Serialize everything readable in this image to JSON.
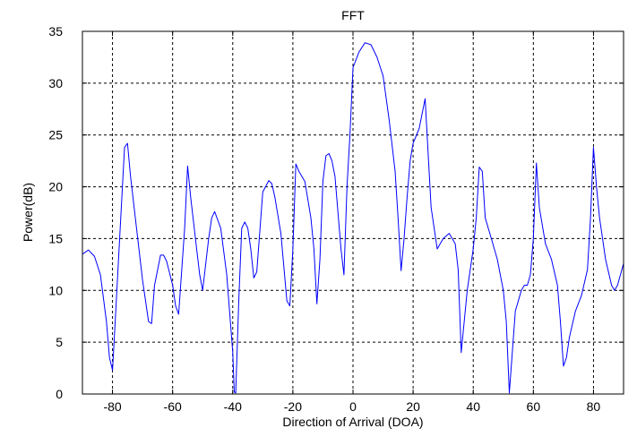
{
  "chart_data": {
    "type": "line",
    "title": "FFT",
    "xlabel": "Direction of Arrival (DOA)",
    "ylabel": "Power(dB)",
    "xlim": [
      -90,
      90
    ],
    "ylim": [
      0,
      35
    ],
    "xticks": [
      -80,
      -60,
      -40,
      -20,
      0,
      20,
      40,
      60,
      80
    ],
    "yticks": [
      0,
      5,
      10,
      15,
      20,
      25,
      30,
      35
    ],
    "grid": true,
    "line_color": "#0000ff",
    "series": [
      {
        "x": [
          -90,
          -88,
          -86,
          -84,
          -82,
          -81,
          -80,
          -79,
          -78,
          -76,
          -75,
          -74,
          -72,
          -70,
          -68,
          -67,
          -66,
          -64,
          -63,
          -62,
          -60,
          -59,
          -58,
          -56,
          -55,
          -54,
          -52,
          -51,
          -50,
          -48,
          -47,
          -46,
          -44,
          -42,
          -40,
          -39.5,
          -39,
          -38,
          -37,
          -36,
          -35,
          -34,
          -33,
          -32,
          -30,
          -28,
          -27,
          -26,
          -24,
          -22,
          -21,
          -20,
          -19,
          -18,
          -16,
          -14,
          -13,
          -12,
          -11,
          -10,
          -9,
          -8,
          -7,
          -6,
          -4,
          -3,
          -2,
          -1,
          0,
          2,
          4,
          6,
          8,
          10,
          12,
          14,
          15,
          16,
          17,
          18,
          19,
          20,
          22,
          24,
          26,
          28,
          30,
          32,
          34,
          35,
          36,
          38,
          40,
          41,
          42,
          43,
          44,
          46,
          48,
          50,
          51,
          52,
          53,
          54,
          56,
          57,
          58,
          59,
          60,
          61,
          62,
          64,
          66,
          68,
          69,
          70,
          71,
          72,
          74,
          76,
          78,
          79,
          80,
          81,
          82,
          84,
          86,
          87,
          88,
          90
        ],
        "y": [
          13.5,
          13.9,
          13.3,
          11.5,
          7.0,
          3.5,
          2.3,
          7.5,
          13.0,
          23.8,
          24.2,
          21.0,
          16.0,
          11.0,
          7.0,
          6.8,
          10.5,
          13.4,
          13.4,
          12.8,
          10.5,
          8.5,
          7.7,
          16.0,
          22.0,
          19.0,
          14.0,
          11.5,
          10.0,
          15.0,
          17.0,
          17.6,
          16.0,
          11.5,
          4.0,
          0.2,
          0.1,
          9.0,
          16.0,
          16.6,
          16.0,
          14.0,
          11.2,
          11.8,
          19.5,
          20.6,
          20.3,
          19.0,
          15.5,
          9.0,
          8.5,
          14.0,
          22.2,
          21.5,
          20.5,
          17.0,
          14.0,
          8.7,
          13.0,
          20.5,
          23.0,
          23.2,
          22.5,
          21.0,
          14.0,
          11.5,
          20.0,
          25.0,
          31.5,
          33.0,
          33.9,
          33.7,
          32.5,
          30.7,
          26.5,
          21.5,
          17.0,
          11.9,
          15.0,
          19.0,
          22.5,
          24.2,
          25.6,
          28.5,
          18.0,
          14.0,
          15.0,
          15.5,
          14.5,
          12.0,
          4.0,
          10.0,
          14.0,
          17.0,
          21.9,
          21.5,
          17.0,
          15.0,
          13.0,
          10.0,
          7.0,
          0.1,
          4.0,
          8.0,
          10.0,
          10.5,
          10.5,
          11.5,
          15.0,
          22.3,
          18.0,
          14.5,
          13.0,
          10.5,
          7.0,
          2.7,
          3.5,
          5.5,
          8.0,
          9.5,
          12.0,
          17.0,
          23.8,
          20.0,
          17.0,
          13.0,
          10.5,
          10.0,
          10.5,
          12.6
        ]
      }
    ]
  }
}
